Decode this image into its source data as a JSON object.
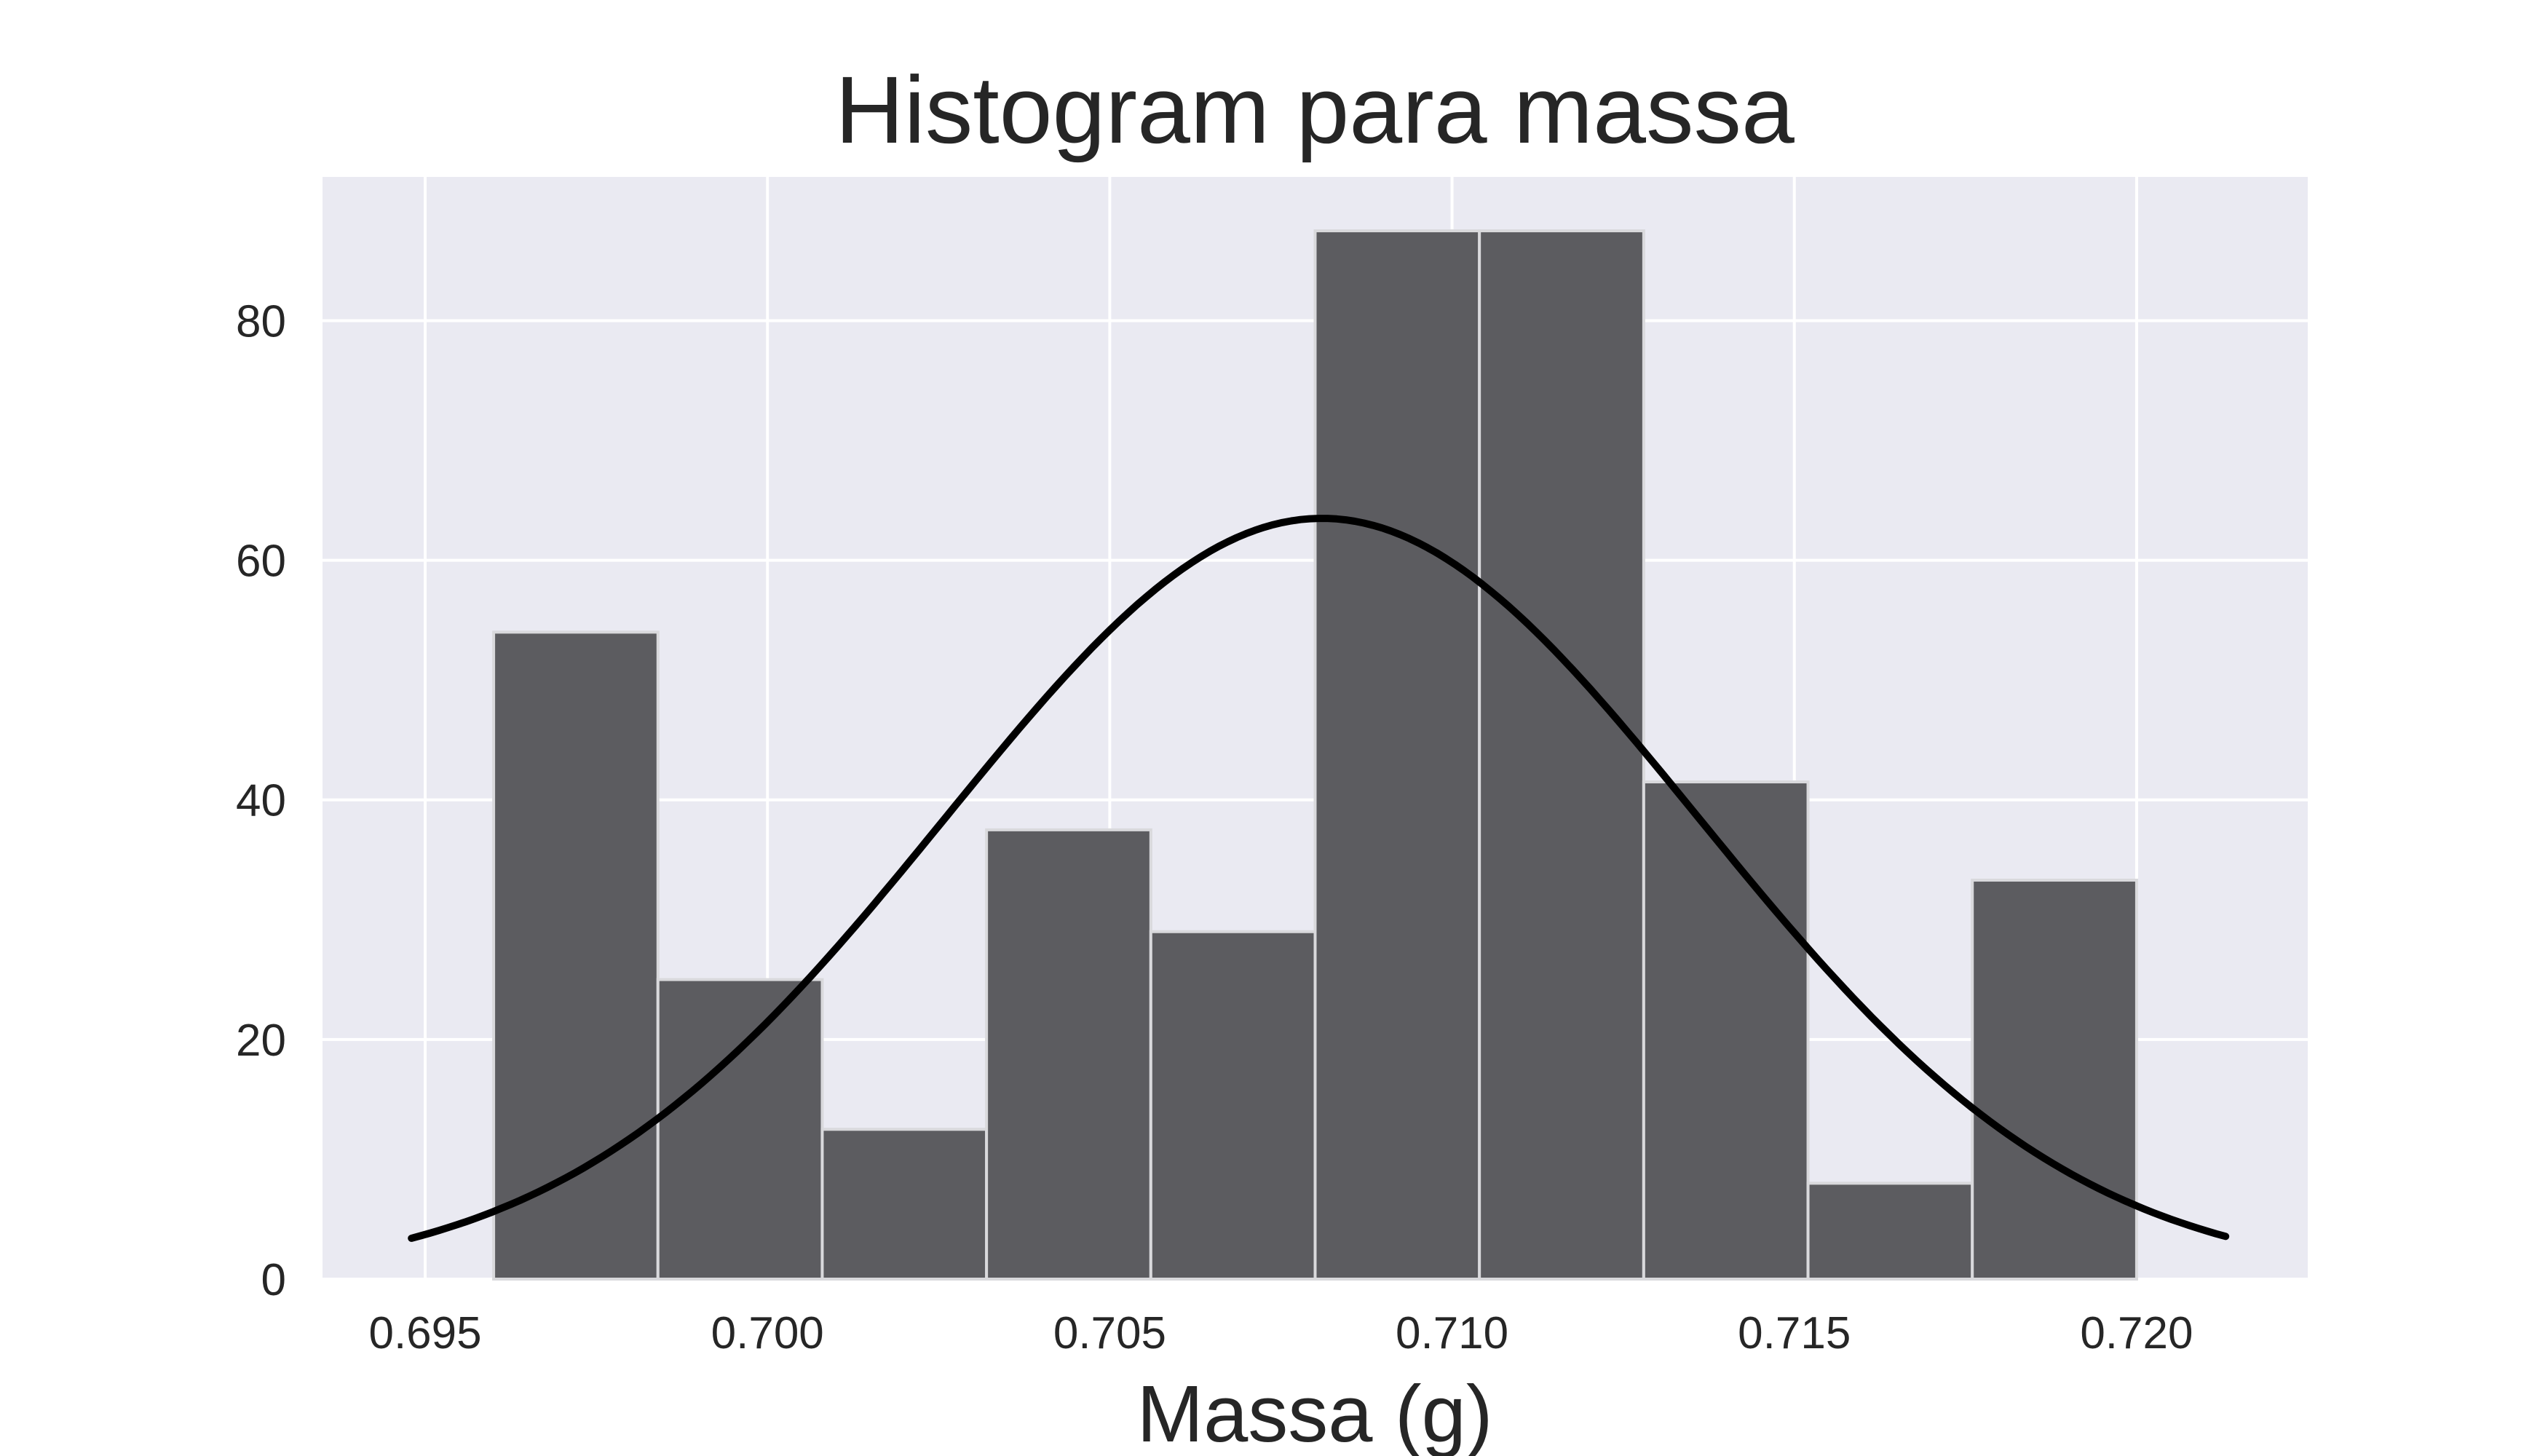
{
  "chart_data": {
    "type": "bar",
    "title": "Histogram para massa",
    "xlabel": "Massa (g)",
    "ylabel": "",
    "xlim": [
      0.6935,
      0.7225
    ],
    "ylim": [
      0,
      92
    ],
    "xticks": [
      0.695,
      0.7,
      0.705,
      0.71,
      0.715,
      0.72
    ],
    "xtick_labels": [
      "0.695",
      "0.700",
      "0.705",
      "0.710",
      "0.715",
      "0.720"
    ],
    "yticks": [
      0,
      20,
      40,
      60,
      80
    ],
    "ytick_labels": [
      "0",
      "20",
      "40",
      "60",
      "80"
    ],
    "grid": true,
    "legend": "none",
    "bins": [
      {
        "x0": 0.696,
        "x1": 0.6984,
        "count": 54
      },
      {
        "x0": 0.6984,
        "x1": 0.7008,
        "count": 25
      },
      {
        "x0": 0.7008,
        "x1": 0.7032,
        "count": 12.5
      },
      {
        "x0": 0.7032,
        "x1": 0.7056,
        "count": 37.5
      },
      {
        "x0": 0.7056,
        "x1": 0.708,
        "count": 29
      },
      {
        "x0": 0.708,
        "x1": 0.7104,
        "count": 87.5
      },
      {
        "x0": 0.7104,
        "x1": 0.7128,
        "count": 87.5
      },
      {
        "x0": 0.7128,
        "x1": 0.7152,
        "count": 41.5
      },
      {
        "x0": 0.7152,
        "x1": 0.7176,
        "count": 8
      },
      {
        "x0": 0.7176,
        "x1": 0.72,
        "count": 33.3
      }
    ],
    "curve": {
      "type": "normal-fit",
      "mean": 0.7081,
      "sd": 0.0055,
      "peak": 63.5,
      "x_range": [
        0.6948,
        0.7213
      ]
    },
    "colors": {
      "plot_background": "#EAEAF2",
      "grid": "#FFFFFF",
      "bar_fill": "#5C5C60",
      "bar_edge": "#D9D9DC",
      "curve": "#000000"
    }
  }
}
